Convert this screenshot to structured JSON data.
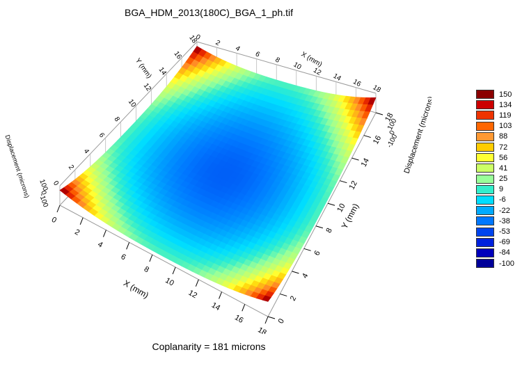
{
  "title": "BGA_HDM_2013(180C)_BGA_1_ph.tif",
  "footer": "Coplanarity = 181 microns",
  "chart_data": {
    "type": "heatmap",
    "surface": "3d-displacement",
    "x_axis": {
      "label": "X (mm)",
      "ticks": [
        "0",
        "2",
        "4",
        "6",
        "8",
        "10",
        "12",
        "14",
        "16",
        "18"
      ],
      "range": [
        0,
        18
      ]
    },
    "y_axis": {
      "label": "Y (mm)",
      "ticks": [
        "0",
        "2",
        "4",
        "6",
        "8",
        "10",
        "12",
        "14",
        "16",
        "18"
      ],
      "range": [
        0,
        18
      ]
    },
    "z_axis": {
      "label": "Displacement (microns)",
      "ticks": [
        "-100",
        "0",
        "100"
      ],
      "range": [
        -100,
        150
      ]
    },
    "colorbar": {
      "placement": "right",
      "entries": [
        {
          "label": "150",
          "color": "#8b0000"
        },
        {
          "label": "134",
          "color": "#cc0000"
        },
        {
          "label": "119",
          "color": "#ee3300"
        },
        {
          "label": "103",
          "color": "#ff6600"
        },
        {
          "label": "88",
          "color": "#ff9933"
        },
        {
          "label": "72",
          "color": "#ffcc00"
        },
        {
          "label": "56",
          "color": "#ffff33"
        },
        {
          "label": "41",
          "color": "#ccff66"
        },
        {
          "label": "25",
          "color": "#99ff99"
        },
        {
          "label": "9",
          "color": "#33eecc"
        },
        {
          "label": "-6",
          "color": "#00ddff"
        },
        {
          "label": "-22",
          "color": "#00aaff"
        },
        {
          "label": "-38",
          "color": "#0077ff"
        },
        {
          "label": "-53",
          "color": "#0044ee"
        },
        {
          "label": "-69",
          "color": "#0022dd"
        },
        {
          "label": "-84",
          "color": "#0000bb"
        },
        {
          "label": "-100",
          "color": "#000099"
        }
      ]
    },
    "surface_shape": {
      "description_values": "center minimum about -45 microns, corners about 110-130 microns",
      "center_value": -45,
      "corner_value": 125,
      "edge_mid_value": 30
    },
    "coplanarity_microns": 181
  }
}
